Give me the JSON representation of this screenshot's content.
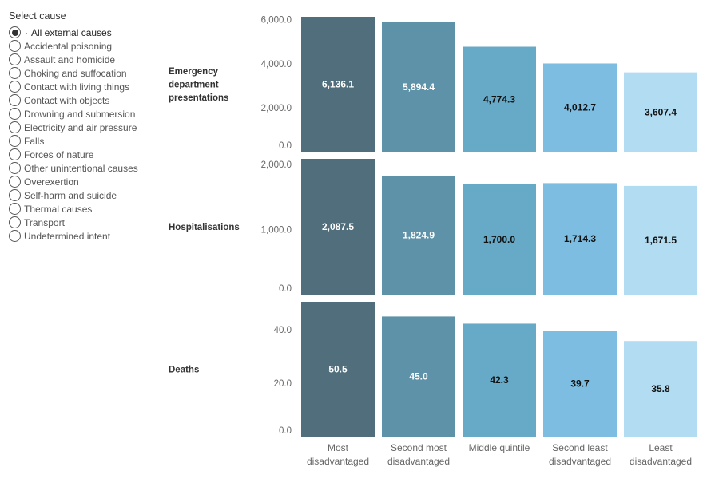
{
  "filter": {
    "title": "Select cause",
    "selected_index": 0,
    "options": [
      "All external causes",
      "Accidental poisoning",
      "Assault and homicide",
      "Choking and suffocation",
      "Contact with living things",
      "Contact with objects",
      "Drowning and submersion",
      "Electricity and air pressure",
      "Falls",
      "Forces of nature",
      "Other unintentional causes",
      "Overexertion",
      "Self-harm and suicide",
      "Thermal causes",
      "Transport",
      "Undetermined intent"
    ]
  },
  "colors": [
    "#506e7b",
    "#5e92a8",
    "#67aac8",
    "#7dbde2",
    "#b1dcf1"
  ],
  "value_text_colors": [
    "#ffffff",
    "#ffffff",
    "#111111",
    "#111111",
    "#111111"
  ],
  "chart_data": {
    "type": "bar",
    "categories": [
      [
        "Most",
        "disadvantaged"
      ],
      [
        "Second most",
        "disadvantaged"
      ],
      [
        "Middle quintile"
      ],
      [
        "Second least",
        "disadvantaged"
      ],
      [
        "Least",
        "disadvantaged"
      ]
    ],
    "panels": [
      {
        "label": [
          "Emergency",
          "department",
          "presentations"
        ],
        "values": [
          6136.1,
          5894.4,
          4774.3,
          4012.7,
          3607.4
        ],
        "value_labels": [
          "6,136.1",
          "5,894.4",
          "4,774.3",
          "4,012.7",
          "3,607.4"
        ],
        "ylim": [
          0,
          6136.1
        ],
        "ticks": [
          0,
          2000,
          4000,
          6000
        ],
        "tick_labels": [
          "0.0",
          "2,000.0",
          "4,000.0",
          "6,000.0"
        ]
      },
      {
        "label": [
          "Hospitalisations"
        ],
        "values": [
          2087.5,
          1824.9,
          1700.0,
          1714.3,
          1671.5
        ],
        "value_labels": [
          "2,087.5",
          "1,824.9",
          "1,700.0",
          "1,714.3",
          "1,671.5"
        ],
        "ylim": [
          0,
          2087.5
        ],
        "ticks": [
          0,
          1000,
          2000
        ],
        "tick_labels": [
          "0.0",
          "1,000.0",
          "2,000.0"
        ]
      },
      {
        "label": [
          "Deaths"
        ],
        "values": [
          50.5,
          45.0,
          42.3,
          39.7,
          35.8
        ],
        "value_labels": [
          "50.5",
          "45.0",
          "42.3",
          "39.7",
          "35.8"
        ],
        "ylim": [
          0,
          50.5
        ],
        "ticks": [
          0,
          20,
          40
        ],
        "tick_labels": [
          "0.0",
          "20.0",
          "40.0"
        ]
      }
    ]
  }
}
